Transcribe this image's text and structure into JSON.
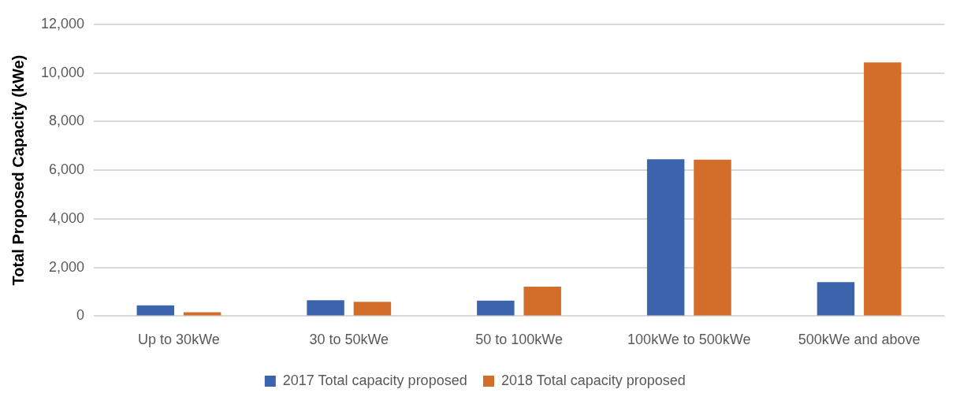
{
  "chart_data": {
    "type": "bar",
    "ylabel": "Total Proposed Capacity (kWe)",
    "categories": [
      "Up to 30kWe",
      "30 to 50kWe",
      "50 to 100kWe",
      "100kWe to 500kWe",
      "500kWe and above"
    ],
    "series": [
      {
        "name": "2017 Total capacity proposed",
        "color": "#3c64ac",
        "values": [
          440,
          650,
          640,
          6450,
          1400
        ]
      },
      {
        "name": "2018 Total capacity proposed",
        "color": "#d36e2a",
        "values": [
          160,
          590,
          1210,
          6430,
          10430
        ]
      }
    ],
    "ylim": [
      0,
      12000
    ],
    "yticks": [
      {
        "value": 0,
        "label": "0"
      },
      {
        "value": 2000,
        "label": "2,000"
      },
      {
        "value": 4000,
        "label": "4,000"
      },
      {
        "value": 6000,
        "label": "6,000"
      },
      {
        "value": 8000,
        "label": "8,000"
      },
      {
        "value": 10000,
        "label": "10,000"
      },
      {
        "value": 12000,
        "label": "12,000"
      }
    ],
    "grid": "y",
    "legend": "bottom"
  }
}
